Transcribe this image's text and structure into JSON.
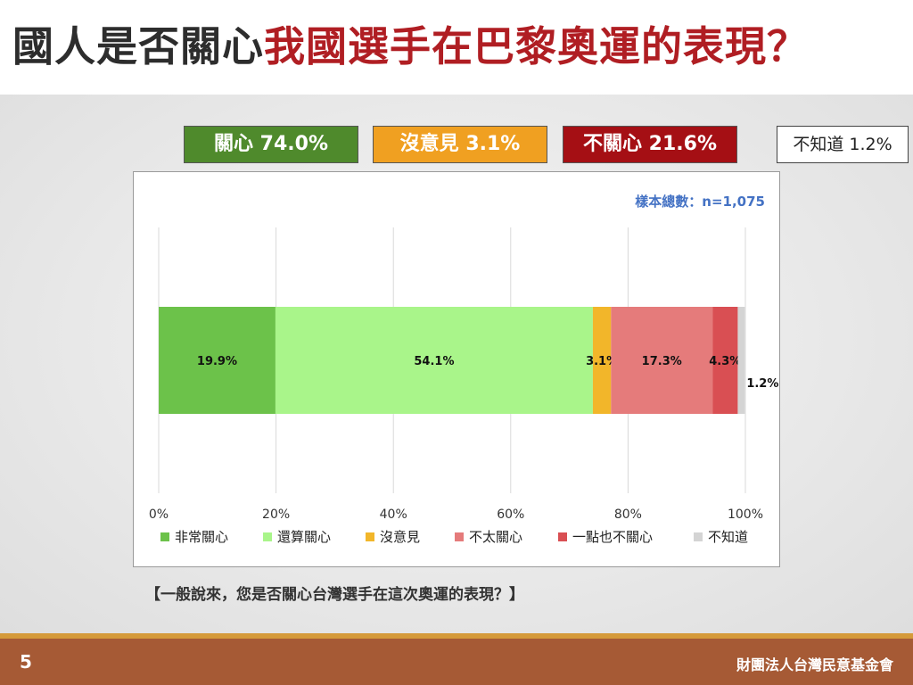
{
  "title": {
    "part1": "國人是否關心",
    "part2": "我國選手在巴黎奧運的表現？"
  },
  "summary": {
    "concern": "關心 74.0%",
    "neutral": "沒意見 3.1%",
    "not_concern": "不關心 21.6%",
    "unknown": "不知道 1.2%"
  },
  "sample_size": "樣本總數：n=1,075",
  "question": "【一般說來，您是否關心台灣選手在這次奧運的表現？】",
  "footer": {
    "page_number": "5",
    "organization": "財團法人台灣民意基金會"
  },
  "colors": {
    "title_dark": "#2d2d2d",
    "title_red": "#b01e23",
    "concern_box": "#4f8a2c",
    "neutral_box": "#f0a021",
    "not_concern_box": "#a50f14",
    "footer": "#a65a35"
  },
  "chart_data": {
    "type": "bar",
    "orientation": "horizontal",
    "stacked": true,
    "xlim": [
      0,
      100
    ],
    "x_ticks": [
      "0%",
      "20%",
      "40%",
      "60%",
      "80%",
      "100%"
    ],
    "grid": true,
    "legend_position": "bottom",
    "series": [
      {
        "name": "非常關心",
        "value": 19.9,
        "label": "19.9%",
        "color": "#6cc24a"
      },
      {
        "name": "還算關心",
        "value": 54.1,
        "label": "54.1%",
        "color": "#a9f58a"
      },
      {
        "name": "沒意見",
        "value": 3.1,
        "label": "3.1%",
        "color": "#f2b62a"
      },
      {
        "name": "不太關心",
        "value": 17.3,
        "label": "17.3%",
        "color": "#e57b7b"
      },
      {
        "name": "一點也不關心",
        "value": 4.3,
        "label": "4.3%",
        "color": "#d94f53"
      },
      {
        "name": "不知道",
        "value": 1.2,
        "label": "1.2%",
        "color": "#d4d4d4"
      }
    ]
  }
}
